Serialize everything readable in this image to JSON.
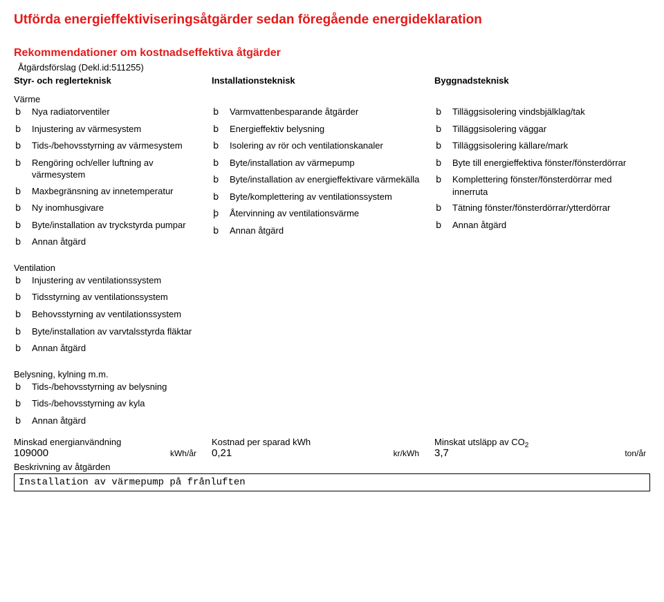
{
  "header": {
    "title": "Utförda energieffektiviseringsåtgärder sedan föregående energideklaration",
    "subtitle": "Rekommendationer om kostnadseffektiva åtgärder",
    "proposal_label": "Åtgärdsförslag (Dekl.id:511255)"
  },
  "columns": {
    "c1_head": "Styr- och reglerteknisk",
    "c2_head": "Installationsteknisk",
    "c3_head": "Byggnadsteknisk"
  },
  "section_varme": {
    "heading": "Värme",
    "items": [
      {
        "check": "b",
        "text": "Nya radiatorventiler"
      },
      {
        "check": "b",
        "text": "Injustering av värmesystem"
      },
      {
        "check": "b",
        "text": "Tids-/behovsstyrning av värmesystem"
      },
      {
        "check": "b",
        "text": "Rengöring och/eller luftning av värmesystem"
      },
      {
        "check": "b",
        "text": "Maxbegränsning av innetemperatur"
      },
      {
        "check": "b",
        "text": "Ny inomhusgivare"
      },
      {
        "check": "b",
        "text": "Byte/installation av tryckstyrda pumpar"
      },
      {
        "check": "b",
        "text": "Annan åtgärd"
      }
    ]
  },
  "section_install": {
    "items": [
      {
        "check": "b",
        "text": "Varmvattenbesparande åtgärder"
      },
      {
        "check": "b",
        "text": "Energieffektiv belysning"
      },
      {
        "check": "b",
        "text": "Isolering av rör och ventilationskanaler"
      },
      {
        "check": "b",
        "text": "Byte/installation av värmepump"
      },
      {
        "check": "b",
        "text": "Byte/installation av energieffektivare värmekälla"
      },
      {
        "check": "b",
        "text": "Byte/komplettering av ventilationssystem"
      },
      {
        "check": "þ",
        "text": "Återvinning av ventilationsvärme"
      },
      {
        "check": "b",
        "text": "Annan åtgärd"
      }
    ]
  },
  "section_bygg": {
    "items": [
      {
        "check": "b",
        "text": "Tilläggsisolering vindsbjälklag/tak"
      },
      {
        "check": "b",
        "text": "Tilläggsisolering väggar"
      },
      {
        "check": "b",
        "text": "Tilläggsisolering källare/mark"
      },
      {
        "check": "b",
        "text": "Byte till energieffektiva fönster/fönsterdörrar"
      },
      {
        "check": "b",
        "text": "Komplettering fönster/fönsterdörrar med innerruta"
      },
      {
        "check": "b",
        "text": "Tätning fönster/fönsterdörrar/ytterdörrar"
      },
      {
        "check": "b",
        "text": "Annan åtgärd"
      }
    ]
  },
  "section_vent": {
    "heading": "Ventilation",
    "items": [
      {
        "check": "b",
        "text": "Injustering av ventilationssystem"
      },
      {
        "check": "b",
        "text": "Tidsstyrning av ventilationssystem"
      },
      {
        "check": "b",
        "text": "Behovsstyrning av ventilationssystem"
      },
      {
        "check": "b",
        "text": "Byte/installation av varvtalsstyrda fläktar"
      },
      {
        "check": "b",
        "text": "Annan åtgärd"
      }
    ]
  },
  "section_bel": {
    "heading": "Belysning, kylning m.m.",
    "items": [
      {
        "check": "b",
        "text": "Tids-/behovsstyrning av belysning"
      },
      {
        "check": "b",
        "text": "Tids-/behovsstyrning av kyla"
      },
      {
        "check": "b",
        "text": "Annan åtgärd"
      }
    ]
  },
  "summary": {
    "s1": {
      "label": "Minskad energianvändning",
      "value": "109000",
      "unit": "kWh/år"
    },
    "s2": {
      "label": "Kostnad per sparad kWh",
      "value": "0,21",
      "unit": "kr/kWh"
    },
    "s3": {
      "label_prefix": "Minskat utsläpp av CO",
      "label_sub": "2",
      "value": "3,7",
      "unit": "ton/år"
    },
    "desc_label": "Beskrivning av åtgärden",
    "desc_value": "Installation av värmepump på frånluften"
  }
}
